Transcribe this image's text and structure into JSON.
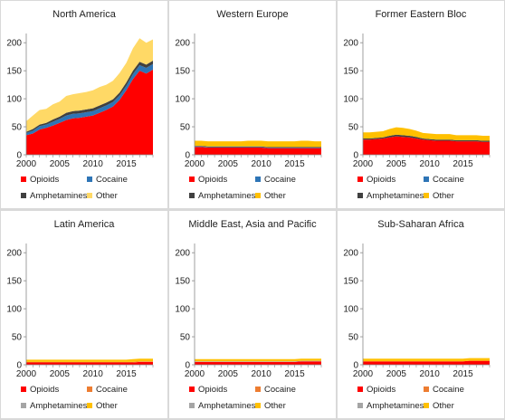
{
  "chart_data": [
    {
      "type": "area",
      "title": "North America",
      "x": [
        2000,
        2001,
        2002,
        2003,
        2004,
        2005,
        2006,
        2007,
        2008,
        2009,
        2010,
        2011,
        2012,
        2013,
        2014,
        2015,
        2016,
        2017,
        2018,
        2019
      ],
      "x_ticks": [
        2000,
        2005,
        2010,
        2015
      ],
      "y_ticks": [
        0,
        50,
        100,
        150,
        200
      ],
      "ylim": [
        0,
        210
      ],
      "stacked": true,
      "legend": "bottom",
      "series": [
        {
          "name": "Opioids",
          "color": "#ff0000",
          "values": [
            35,
            38,
            45,
            48,
            52,
            57,
            62,
            65,
            66,
            68,
            70,
            75,
            80,
            86,
            98,
            115,
            135,
            150,
            145,
            152
          ]
        },
        {
          "name": "Cocaine",
          "color": "#2e75b6",
          "values": [
            4,
            5,
            6,
            6,
            7,
            7,
            8,
            8,
            8,
            8,
            8,
            8,
            8,
            8,
            8,
            8,
            9,
            10,
            10,
            10
          ]
        },
        {
          "name": "Amphetamines",
          "color": "#404040",
          "values": [
            2,
            3,
            3,
            3,
            4,
            4,
            5,
            5,
            5,
            5,
            5,
            5,
            5,
            5,
            5,
            6,
            6,
            6,
            6,
            6
          ]
        },
        {
          "name": "Other",
          "color": "#ffd966",
          "values": [
            19,
            24,
            26,
            25,
            27,
            27,
            30,
            30,
            31,
            31,
            32,
            33,
            32,
            33,
            35,
            35,
            40,
            42,
            39,
            38
          ]
        }
      ]
    },
    {
      "type": "area",
      "title": "Western Europe",
      "x": [
        2000,
        2001,
        2002,
        2003,
        2004,
        2005,
        2006,
        2007,
        2008,
        2009,
        2010,
        2011,
        2012,
        2013,
        2014,
        2015,
        2016,
        2017,
        2018,
        2019
      ],
      "x_ticks": [
        2000,
        2005,
        2010,
        2015
      ],
      "y_ticks": [
        0,
        50,
        100,
        150,
        200
      ],
      "ylim": [
        0,
        210
      ],
      "stacked": true,
      "legend": "bottom",
      "series": [
        {
          "name": "Opioids",
          "color": "#ff0000",
          "values": [
            14,
            14,
            13,
            13,
            13,
            13,
            13,
            13,
            13,
            13,
            13,
            12,
            12,
            12,
            12,
            12,
            12,
            12,
            12,
            12
          ]
        },
        {
          "name": "Cocaine",
          "color": "#2e75b6",
          "values": [
            1,
            1,
            1,
            1,
            1,
            1,
            1,
            1,
            1,
            1,
            1,
            1,
            1,
            1,
            1,
            1,
            1,
            1,
            1,
            1
          ]
        },
        {
          "name": "Amphetamines",
          "color": "#404040",
          "values": [
            1,
            1,
            1,
            1,
            1,
            1,
            1,
            1,
            1,
            1,
            1,
            1,
            1,
            1,
            1,
            1,
            1,
            1,
            1,
            1
          ]
        },
        {
          "name": "Other",
          "color": "#ffc000",
          "values": [
            9,
            9,
            9,
            9,
            9,
            9,
            9,
            9,
            10,
            10,
            10,
            10,
            10,
            10,
            10,
            10,
            11,
            11,
            10,
            10
          ]
        }
      ]
    },
    {
      "type": "area",
      "title": "Former Eastern Bloc",
      "x": [
        2000,
        2001,
        2002,
        2003,
        2004,
        2005,
        2006,
        2007,
        2008,
        2009,
        2010,
        2011,
        2012,
        2013,
        2014,
        2015,
        2016,
        2017,
        2018,
        2019
      ],
      "x_ticks": [
        2000,
        2005,
        2010,
        2015
      ],
      "y_ticks": [
        0,
        50,
        100,
        150,
        200
      ],
      "ylim": [
        0,
        210
      ],
      "stacked": true,
      "legend": "bottom",
      "series": [
        {
          "name": "Opioids",
          "color": "#ff0000",
          "values": [
            27,
            27,
            28,
            29,
            31,
            33,
            32,
            31,
            29,
            27,
            26,
            25,
            25,
            25,
            24,
            24,
            24,
            24,
            23,
            23
          ]
        },
        {
          "name": "Cocaine",
          "color": "#2e75b6",
          "values": [
            0,
            0,
            0,
            0,
            0,
            0,
            0,
            0,
            0,
            0,
            0,
            0,
            0,
            0,
            0,
            0,
            0,
            0,
            0,
            0
          ]
        },
        {
          "name": "Amphetamines",
          "color": "#404040",
          "values": [
            2,
            2,
            2,
            2,
            3,
            3,
            3,
            3,
            3,
            2,
            2,
            2,
            2,
            2,
            2,
            2,
            2,
            2,
            2,
            2
          ]
        },
        {
          "name": "Other",
          "color": "#ffc000",
          "values": [
            11,
            11,
            11,
            11,
            12,
            13,
            13,
            12,
            11,
            10,
            10,
            10,
            10,
            10,
            9,
            9,
            9,
            9,
            9,
            9
          ]
        }
      ]
    },
    {
      "type": "area",
      "title": "Latin America",
      "x": [
        2000,
        2001,
        2002,
        2003,
        2004,
        2005,
        2006,
        2007,
        2008,
        2009,
        2010,
        2011,
        2012,
        2013,
        2014,
        2015,
        2016,
        2017,
        2018,
        2019
      ],
      "x_ticks": [
        2000,
        2005,
        2010,
        2015
      ],
      "y_ticks": [
        0,
        50,
        100,
        150,
        200
      ],
      "ylim": [
        0,
        210
      ],
      "stacked": true,
      "legend": "bottom",
      "series": [
        {
          "name": "Opioids",
          "color": "#ff0000",
          "values": [
            4,
            4,
            4,
            4,
            4,
            4,
            4,
            4,
            4,
            4,
            4,
            4,
            4,
            4,
            4,
            4,
            4,
            5,
            5,
            5
          ]
        },
        {
          "name": "Cocaine",
          "color": "#ed7d31",
          "values": [
            1,
            1,
            1,
            1,
            1,
            1,
            1,
            1,
            1,
            1,
            1,
            1,
            1,
            1,
            1,
            1,
            1,
            1,
            1,
            1
          ]
        },
        {
          "name": "Amphetamines",
          "color": "#a5a5a5",
          "values": [
            0,
            0,
            0,
            0,
            0,
            0,
            0,
            0,
            0,
            0,
            0,
            0,
            0,
            0,
            0,
            0,
            0,
            0,
            0,
            0
          ]
        },
        {
          "name": "Other",
          "color": "#ffc000",
          "values": [
            4,
            4,
            4,
            4,
            4,
            4,
            4,
            4,
            4,
            4,
            4,
            4,
            4,
            4,
            4,
            4,
            5,
            5,
            5,
            5
          ]
        }
      ]
    },
    {
      "type": "area",
      "title": "Middle East, Asia and Pacific",
      "x": [
        2000,
        2001,
        2002,
        2003,
        2004,
        2005,
        2006,
        2007,
        2008,
        2009,
        2010,
        2011,
        2012,
        2013,
        2014,
        2015,
        2016,
        2017,
        2018,
        2019
      ],
      "x_ticks": [
        2000,
        2005,
        2010,
        2015
      ],
      "y_ticks": [
        0,
        50,
        100,
        150,
        200
      ],
      "ylim": [
        0,
        210
      ],
      "stacked": true,
      "legend": "bottom",
      "series": [
        {
          "name": "Opioids",
          "color": "#ff0000",
          "values": [
            5,
            5,
            5,
            5,
            5,
            5,
            5,
            5,
            5,
            5,
            5,
            5,
            5,
            5,
            5,
            5,
            6,
            6,
            6,
            6
          ]
        },
        {
          "name": "Cocaine",
          "color": "#ed7d31",
          "values": [
            0,
            0,
            0,
            0,
            0,
            0,
            0,
            0,
            0,
            0,
            0,
            0,
            0,
            0,
            0,
            0,
            0,
            0,
            0,
            0
          ]
        },
        {
          "name": "Amphetamines",
          "color": "#a5a5a5",
          "values": [
            1,
            1,
            1,
            1,
            1,
            1,
            1,
            1,
            1,
            1,
            1,
            1,
            1,
            1,
            1,
            1,
            1,
            1,
            1,
            1
          ]
        },
        {
          "name": "Other",
          "color": "#ffc000",
          "values": [
            4,
            4,
            4,
            4,
            4,
            4,
            4,
            4,
            4,
            4,
            4,
            4,
            4,
            4,
            4,
            4,
            4,
            4,
            4,
            4
          ]
        }
      ]
    },
    {
      "type": "area",
      "title": "Sub-Saharan Africa",
      "x": [
        2000,
        2001,
        2002,
        2003,
        2004,
        2005,
        2006,
        2007,
        2008,
        2009,
        2010,
        2011,
        2012,
        2013,
        2014,
        2015,
        2016,
        2017,
        2018,
        2019
      ],
      "x_ticks": [
        2000,
        2005,
        2010,
        2015
      ],
      "y_ticks": [
        0,
        50,
        100,
        150,
        200
      ],
      "ylim": [
        0,
        210
      ],
      "stacked": true,
      "legend": "bottom",
      "series": [
        {
          "name": "Opioids",
          "color": "#ff0000",
          "values": [
            6,
            6,
            6,
            6,
            6,
            6,
            6,
            6,
            6,
            6,
            6,
            6,
            6,
            6,
            6,
            6,
            7,
            7,
            7,
            7
          ]
        },
        {
          "name": "Cocaine",
          "color": "#ed7d31",
          "values": [
            0,
            0,
            0,
            0,
            0,
            0,
            0,
            0,
            0,
            0,
            0,
            0,
            0,
            0,
            0,
            0,
            0,
            0,
            0,
            0
          ]
        },
        {
          "name": "Amphetamines",
          "color": "#a5a5a5",
          "values": [
            0,
            0,
            0,
            0,
            0,
            0,
            0,
            0,
            0,
            0,
            0,
            0,
            0,
            0,
            0,
            0,
            0,
            0,
            0,
            0
          ]
        },
        {
          "name": "Other",
          "color": "#ffc000",
          "values": [
            5,
            5,
            5,
            5,
            5,
            5,
            5,
            5,
            5,
            5,
            5,
            5,
            5,
            5,
            5,
            5,
            5,
            5,
            5,
            5
          ]
        }
      ]
    }
  ]
}
